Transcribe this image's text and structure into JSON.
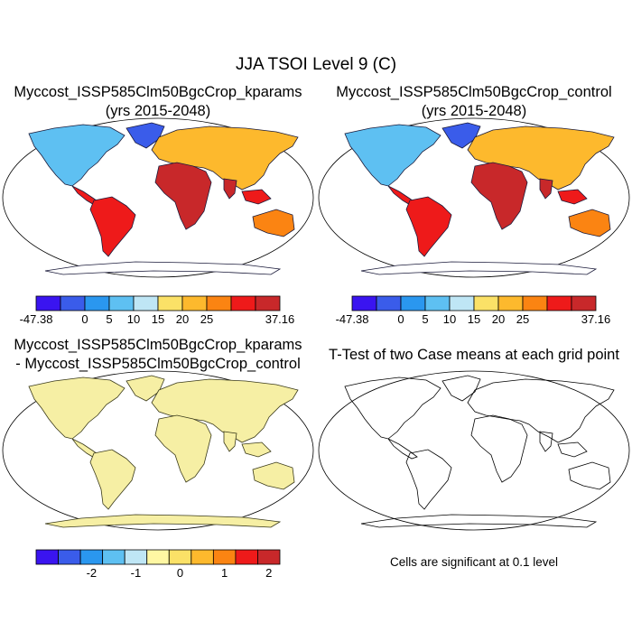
{
  "figure_title": "JJA TSOI Level 9 (C)",
  "panels": [
    {
      "title_line1": "Myccost_ISSP585Clm50BgcCrop_kparams",
      "title_line2": "(yrs 2015-2048)"
    },
    {
      "title_line1": "Myccost_ISSP585Clm50BgcCrop_control",
      "title_line2": "(yrs 2015-2048)"
    },
    {
      "title_line1": "Myccost_ISSP585Clm50BgcCrop_kparams",
      "title_line2": "- Myccost_ISSP585Clm50BgcCrop_control"
    },
    {
      "title_line1": "T-Test of two Case means at each grid point",
      "title_line2": ""
    }
  ],
  "colorbar_abs": {
    "colors": [
      "#3a14f0",
      "#3a5cea",
      "#2a97ef",
      "#5ec0f2",
      "#bfe6f5",
      "#fbe167",
      "#fdb92d",
      "#fb8412",
      "#ee1a1a",
      "#c8282a"
    ],
    "labels": [
      "-47.38",
      "0",
      "5",
      "10",
      "15",
      "20",
      "25",
      "37.16"
    ]
  },
  "colorbar_diff": {
    "colors": [
      "#3a14f0",
      "#3a5cea",
      "#2a97ef",
      "#5ec0f2",
      "#bfe6f5",
      "#fff7a3",
      "#fbe167",
      "#fdb92d",
      "#fb8412",
      "#ee1a1a",
      "#c8282a"
    ],
    "labels": [
      "-2",
      "-1",
      "0",
      "1",
      "2"
    ]
  },
  "ttest_note": "Cells are significant at 0.1 level",
  "colors": {
    "land_hot": "#d42a2a",
    "land_cold": "#2a54e8",
    "diff_land": "#f6efa4",
    "diff_blue": "#b8e0f2",
    "sig_cells": "#ff0000"
  }
}
